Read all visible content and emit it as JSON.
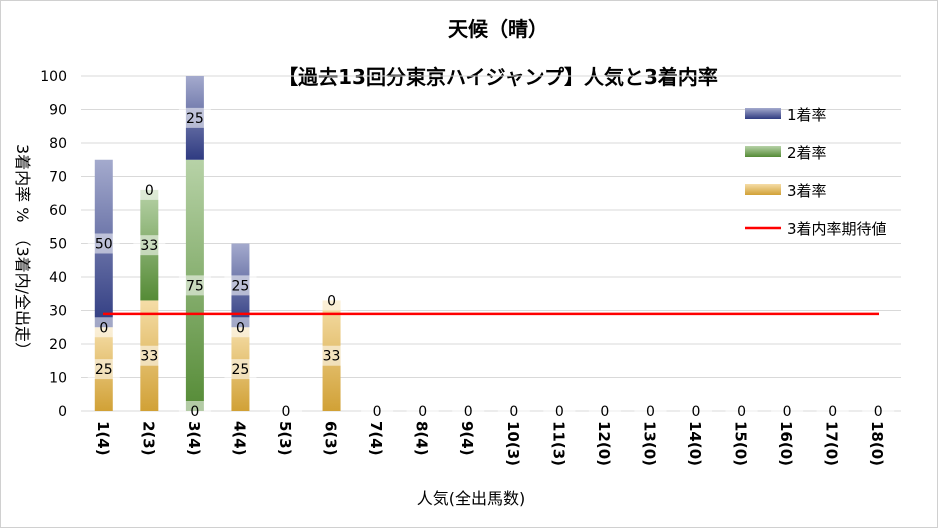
{
  "chart_data": {
    "type": "bar",
    "stacked": true,
    "title": "天候（晴）",
    "subtitle": "【過去13回分東京ハイジャンプ】人気と3着内率",
    "xlabel": "人気(全出馬数)",
    "ylabel": "3着内率 %　（3着内/全出走）",
    "ylim": [
      0,
      100
    ],
    "yticks": [
      0,
      10,
      20,
      30,
      40,
      50,
      60,
      70,
      80,
      90,
      100
    ],
    "grid": true,
    "legend_position": "right",
    "categories": [
      "1(4)",
      "2(3)",
      "3(4)",
      "4(4)",
      "5(3)",
      "6(3)",
      "7(4)",
      "8(4)",
      "9(4)",
      "10(3)",
      "11(3)",
      "12(0)",
      "13(0)",
      "14(0)",
      "15(0)",
      "16(0)",
      "17(0)",
      "18(0)"
    ],
    "series": [
      {
        "name": "3着率",
        "color": "#e8b33c",
        "values": [
          25,
          33,
          0,
          25,
          0,
          33,
          0,
          0,
          0,
          0,
          0,
          0,
          0,
          0,
          0,
          0,
          0,
          0
        ],
        "labels": [
          "25",
          "33",
          "0",
          "25",
          "0",
          "33",
          "0",
          "0",
          "0",
          "0",
          "0",
          "0",
          "0",
          "0",
          "0",
          "0",
          "0",
          "0"
        ]
      },
      {
        "name": "2着率",
        "color": "#5e9a3c",
        "values": [
          0,
          33,
          75,
          0,
          0,
          0,
          0,
          0,
          0,
          0,
          0,
          0,
          0,
          0,
          0,
          0,
          0,
          0
        ],
        "labels": [
          "0",
          "33",
          "75",
          "0",
          "",
          "0",
          "",
          "",
          "",
          "",
          "",
          "",
          "",
          "",
          "",
          "",
          "",
          ""
        ]
      },
      {
        "name": "1着率",
        "color": "#34428f",
        "values": [
          50,
          0,
          25,
          25,
          0,
          0,
          0,
          0,
          0,
          0,
          0,
          0,
          0,
          0,
          0,
          0,
          0,
          0
        ],
        "labels": [
          "50",
          "0",
          "25",
          "25",
          "",
          "",
          "",
          "",
          "",
          "",
          "",
          "",
          "",
          "",
          "",
          "",
          "",
          ""
        ]
      }
    ],
    "reference_line": {
      "name": "3着内率期待値",
      "value": 29,
      "color": "#ff0000"
    }
  }
}
